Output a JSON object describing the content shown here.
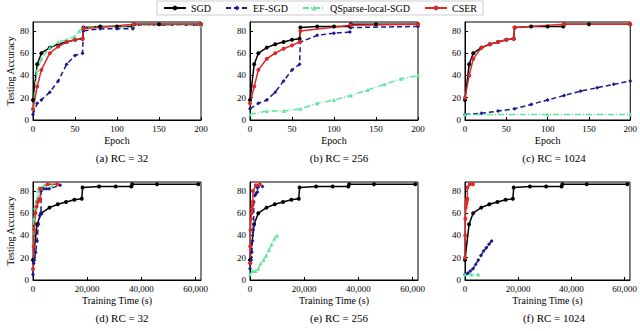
{
  "chart_data": [
    {
      "type": "line",
      "title": "(a) RC = 32",
      "x_label": "Epoch",
      "y_label": "Testing Accuracy",
      "legend": "top",
      "xlim": [
        0,
        200
      ],
      "xticks": [
        0,
        50,
        100,
        150,
        200
      ],
      "ylim": [
        0,
        88
      ],
      "yticks": [
        0,
        20,
        40,
        60,
        80
      ],
      "series": [
        {
          "name": "SGD",
          "color": "#000000",
          "marker": "circle",
          "line_style": "solid",
          "x": [
            0,
            5,
            10,
            20,
            30,
            40,
            50,
            59,
            60,
            80,
            100,
            119,
            120,
            150,
            200
          ],
          "values": [
            18,
            50,
            60,
            65,
            68,
            70,
            72,
            73,
            83,
            84,
            84,
            84,
            86,
            86,
            86
          ]
        },
        {
          "name": "EF-SGD",
          "color": "#1a1a8c",
          "marker": "diamond",
          "line_style": "dashed",
          "x": [
            0,
            5,
            10,
            20,
            30,
            40,
            50,
            59,
            60,
            80,
            100,
            119,
            120,
            200
          ],
          "values": [
            5,
            15,
            18,
            25,
            35,
            50,
            58,
            60,
            80,
            82,
            82,
            82,
            85,
            85
          ]
        },
        {
          "name": "QSparse-local-SGD",
          "color": "#5ee69a",
          "marker": "triangle",
          "line_style": "dashdot",
          "x": [
            0,
            5,
            10,
            20,
            30,
            40,
            50,
            55,
            60,
            120,
            200
          ],
          "values": [
            10,
            45,
            55,
            65,
            70,
            72,
            75,
            80,
            83,
            85,
            85
          ]
        },
        {
          "name": "CSER",
          "color": "#e02828",
          "marker": "circle",
          "line_style": "solid",
          "x": [
            0,
            5,
            10,
            20,
            30,
            40,
            50,
            59,
            60,
            120,
            200
          ],
          "values": [
            10,
            30,
            45,
            60,
            66,
            70,
            72,
            73,
            82,
            86,
            86
          ]
        }
      ]
    },
    {
      "type": "line",
      "title": "(b) RC = 256",
      "x_label": "Epoch",
      "xlim": [
        0,
        200
      ],
      "xticks": [
        0,
        50,
        100,
        150,
        200
      ],
      "ylim": [
        0,
        88
      ],
      "yticks": [
        0,
        20,
        40,
        60,
        80
      ],
      "series": [
        {
          "name": "SGD",
          "color": "#000000",
          "marker": "circle",
          "line_style": "solid",
          "x": [
            0,
            5,
            10,
            20,
            30,
            40,
            50,
            59,
            60,
            80,
            100,
            119,
            120,
            150,
            200
          ],
          "values": [
            18,
            50,
            60,
            65,
            68,
            70,
            72,
            73,
            83,
            84,
            84,
            84,
            86,
            86,
            86
          ]
        },
        {
          "name": "EF-SGD",
          "color": "#1a1a8c",
          "marker": "diamond",
          "line_style": "dashed",
          "x": [
            0,
            10,
            20,
            30,
            40,
            50,
            59,
            60,
            80,
            100,
            119,
            120,
            200
          ],
          "values": [
            10,
            15,
            18,
            25,
            35,
            45,
            50,
            70,
            76,
            78,
            79,
            83,
            84
          ]
        },
        {
          "name": "QSparse-local-SGD",
          "color": "#5ee69a",
          "marker": "triangle",
          "line_style": "dashdot",
          "x": [
            0,
            20,
            40,
            60,
            80,
            100,
            120,
            140,
            160,
            180,
            200
          ],
          "values": [
            5,
            8,
            8,
            10,
            15,
            18,
            22,
            27,
            32,
            37,
            40
          ]
        },
        {
          "name": "CSER",
          "color": "#e02828",
          "marker": "circle",
          "line_style": "solid",
          "x": [
            0,
            5,
            10,
            20,
            30,
            40,
            50,
            59,
            60,
            120,
            200
          ],
          "values": [
            15,
            30,
            45,
            55,
            60,
            64,
            67,
            70,
            80,
            85,
            86
          ]
        }
      ]
    },
    {
      "type": "line",
      "title": "(c) RC = 1024",
      "x_label": "Epoch",
      "xlim": [
        0,
        200
      ],
      "xticks": [
        0,
        50,
        100,
        150,
        200
      ],
      "ylim": [
        0,
        88
      ],
      "yticks": [
        0,
        20,
        40,
        60,
        80
      ],
      "series": [
        {
          "name": "SGD",
          "color": "#000000",
          "marker": "circle",
          "line_style": "solid",
          "x": [
            0,
            5,
            10,
            20,
            30,
            40,
            50,
            59,
            60,
            80,
            100,
            119,
            120,
            150,
            200
          ],
          "values": [
            18,
            50,
            60,
            65,
            68,
            70,
            72,
            73,
            83,
            84,
            84,
            84,
            86,
            86,
            86
          ]
        },
        {
          "name": "EF-SGD",
          "color": "#1a1a8c",
          "marker": "diamond",
          "line_style": "dashed",
          "x": [
            0,
            20,
            40,
            60,
            80,
            100,
            120,
            140,
            160,
            180,
            200
          ],
          "values": [
            5,
            6,
            8,
            10,
            14,
            18,
            22,
            26,
            29,
            32,
            35
          ]
        },
        {
          "name": "QSparse-local-SGD",
          "color": "#5ee69a",
          "marker": "triangle",
          "line_style": "dashdot",
          "x": [
            0,
            100,
            200
          ],
          "values": [
            5,
            5,
            5
          ]
        },
        {
          "name": "CSER",
          "color": "#e02828",
          "marker": "circle",
          "line_style": "solid",
          "x": [
            0,
            5,
            10,
            20,
            30,
            40,
            50,
            59,
            60,
            120,
            200
          ],
          "values": [
            20,
            40,
            55,
            65,
            68,
            70,
            72,
            73,
            83,
            86,
            86
          ]
        }
      ]
    },
    {
      "type": "line",
      "title": "(d) RC = 32",
      "x_label": "Training Time (s)",
      "y_label": "Testing Accuracy",
      "xlim": [
        0,
        62000
      ],
      "xticks": [
        0,
        20000,
        40000,
        60000
      ],
      "ylim": [
        0,
        88
      ],
      "yticks": [
        0,
        20,
        40,
        60,
        80
      ],
      "series": [
        {
          "name": "SGD",
          "color": "#000000",
          "marker": "circle",
          "line_style": "solid",
          "x": [
            0,
            1525,
            3050,
            6100,
            9150,
            12200,
            15250,
            17995,
            18300,
            24400,
            30500,
            36295,
            36600,
            45750,
            61000
          ],
          "values": [
            18,
            50,
            60,
            65,
            68,
            70,
            72,
            73,
            83,
            84,
            84,
            84,
            86,
            86,
            86
          ]
        },
        {
          "name": "EF-SGD",
          "color": "#1a1a8c",
          "marker": "diamond",
          "line_style": "dashed",
          "x": [
            0,
            250,
            500,
            1000,
            1500,
            2000,
            2500,
            2950,
            3000,
            4000,
            5000,
            6000,
            10000
          ],
          "values": [
            5,
            15,
            18,
            25,
            35,
            50,
            58,
            60,
            80,
            82,
            82,
            82,
            85
          ]
        },
        {
          "name": "QSparse-local-SGD",
          "color": "#5ee69a",
          "marker": "triangle",
          "line_style": "dashdot",
          "x": [
            0,
            175,
            350,
            700,
            1050,
            1400,
            1750,
            1925,
            2100,
            4200,
            7000
          ],
          "values": [
            10,
            45,
            55,
            65,
            70,
            72,
            75,
            80,
            83,
            85,
            85
          ]
        },
        {
          "name": "CSER",
          "color": "#e02828",
          "marker": "circle",
          "line_style": "solid",
          "x": [
            0,
            225,
            450,
            900,
            1350,
            1800,
            2250,
            2655,
            2700,
            5400,
            9000
          ],
          "values": [
            10,
            30,
            45,
            60,
            66,
            70,
            72,
            73,
            82,
            86,
            86
          ]
        }
      ]
    },
    {
      "type": "line",
      "title": "(e) RC = 256",
      "x_label": "Training Time (s)",
      "xlim": [
        0,
        62000
      ],
      "xticks": [
        0,
        20000,
        40000,
        60000
      ],
      "ylim": [
        0,
        88
      ],
      "yticks": [
        0,
        20,
        40,
        60,
        80
      ],
      "series": [
        {
          "name": "SGD",
          "color": "#000000",
          "marker": "circle",
          "line_style": "solid",
          "x": [
            0,
            1525,
            3050,
            6100,
            9150,
            12200,
            15250,
            17995,
            18300,
            24400,
            30500,
            36295,
            36600,
            45750,
            61000
          ],
          "values": [
            18,
            50,
            60,
            65,
            68,
            70,
            72,
            73,
            83,
            84,
            84,
            84,
            86,
            86,
            86
          ]
        },
        {
          "name": "EF-SGD",
          "color": "#1a1a8c",
          "marker": "diamond",
          "line_style": "dashed",
          "x": [
            0,
            230,
            460,
            690,
            920,
            1150,
            1357,
            1380,
            1840,
            2300,
            2737,
            2760,
            4600
          ],
          "values": [
            10,
            15,
            18,
            25,
            35,
            45,
            50,
            70,
            76,
            78,
            79,
            83,
            84
          ]
        },
        {
          "name": "QSparse-local-SGD",
          "color": "#5ee69a",
          "marker": "triangle",
          "line_style": "dashdot",
          "x": [
            0,
            1000,
            2000,
            3000,
            4000,
            5000,
            6000,
            7000,
            8000,
            9000,
            10000
          ],
          "values": [
            5,
            8,
            8,
            10,
            15,
            18,
            22,
            27,
            32,
            37,
            40
          ]
        },
        {
          "name": "CSER",
          "color": "#e02828",
          "marker": "circle",
          "line_style": "solid",
          "x": [
            0,
            90,
            180,
            360,
            540,
            720,
            900,
            1062,
            1080,
            2160,
            3600
          ],
          "values": [
            15,
            30,
            45,
            55,
            60,
            64,
            67,
            70,
            80,
            85,
            86
          ]
        }
      ]
    },
    {
      "type": "line",
      "title": "(f) RC = 1024",
      "x_label": "Training Time (s)",
      "xlim": [
        0,
        62000
      ],
      "xticks": [
        0,
        20000,
        40000,
        60000
      ],
      "ylim": [
        0,
        88
      ],
      "yticks": [
        0,
        20,
        40,
        60,
        80
      ],
      "series": [
        {
          "name": "SGD",
          "color": "#000000",
          "marker": "circle",
          "line_style": "solid",
          "x": [
            0,
            1525,
            3050,
            6100,
            9150,
            12200,
            15250,
            17995,
            18300,
            24400,
            30500,
            36295,
            36600,
            45750,
            61000
          ],
          "values": [
            18,
            50,
            60,
            65,
            68,
            70,
            72,
            73,
            83,
            84,
            84,
            84,
            86,
            86,
            86
          ]
        },
        {
          "name": "EF-SGD",
          "color": "#1a1a8c",
          "marker": "diamond",
          "line_style": "dashed",
          "x": [
            0,
            1000,
            2000,
            3000,
            4000,
            5000,
            6000,
            7000,
            8000,
            9000,
            10000
          ],
          "values": [
            5,
            6,
            8,
            10,
            14,
            18,
            22,
            26,
            29,
            32,
            35
          ]
        },
        {
          "name": "QSparse-local-SGD",
          "color": "#5ee69a",
          "marker": "triangle",
          "line_style": "dashdot",
          "x": [
            0,
            2500,
            5000
          ],
          "values": [
            5,
            5,
            5
          ]
        },
        {
          "name": "CSER",
          "color": "#e02828",
          "marker": "circle",
          "line_style": "solid",
          "x": [
            0,
            75,
            150,
            300,
            450,
            600,
            750,
            885,
            900,
            1800,
            3000
          ],
          "values": [
            20,
            40,
            55,
            65,
            68,
            70,
            72,
            73,
            83,
            86,
            86
          ]
        }
      ]
    }
  ]
}
